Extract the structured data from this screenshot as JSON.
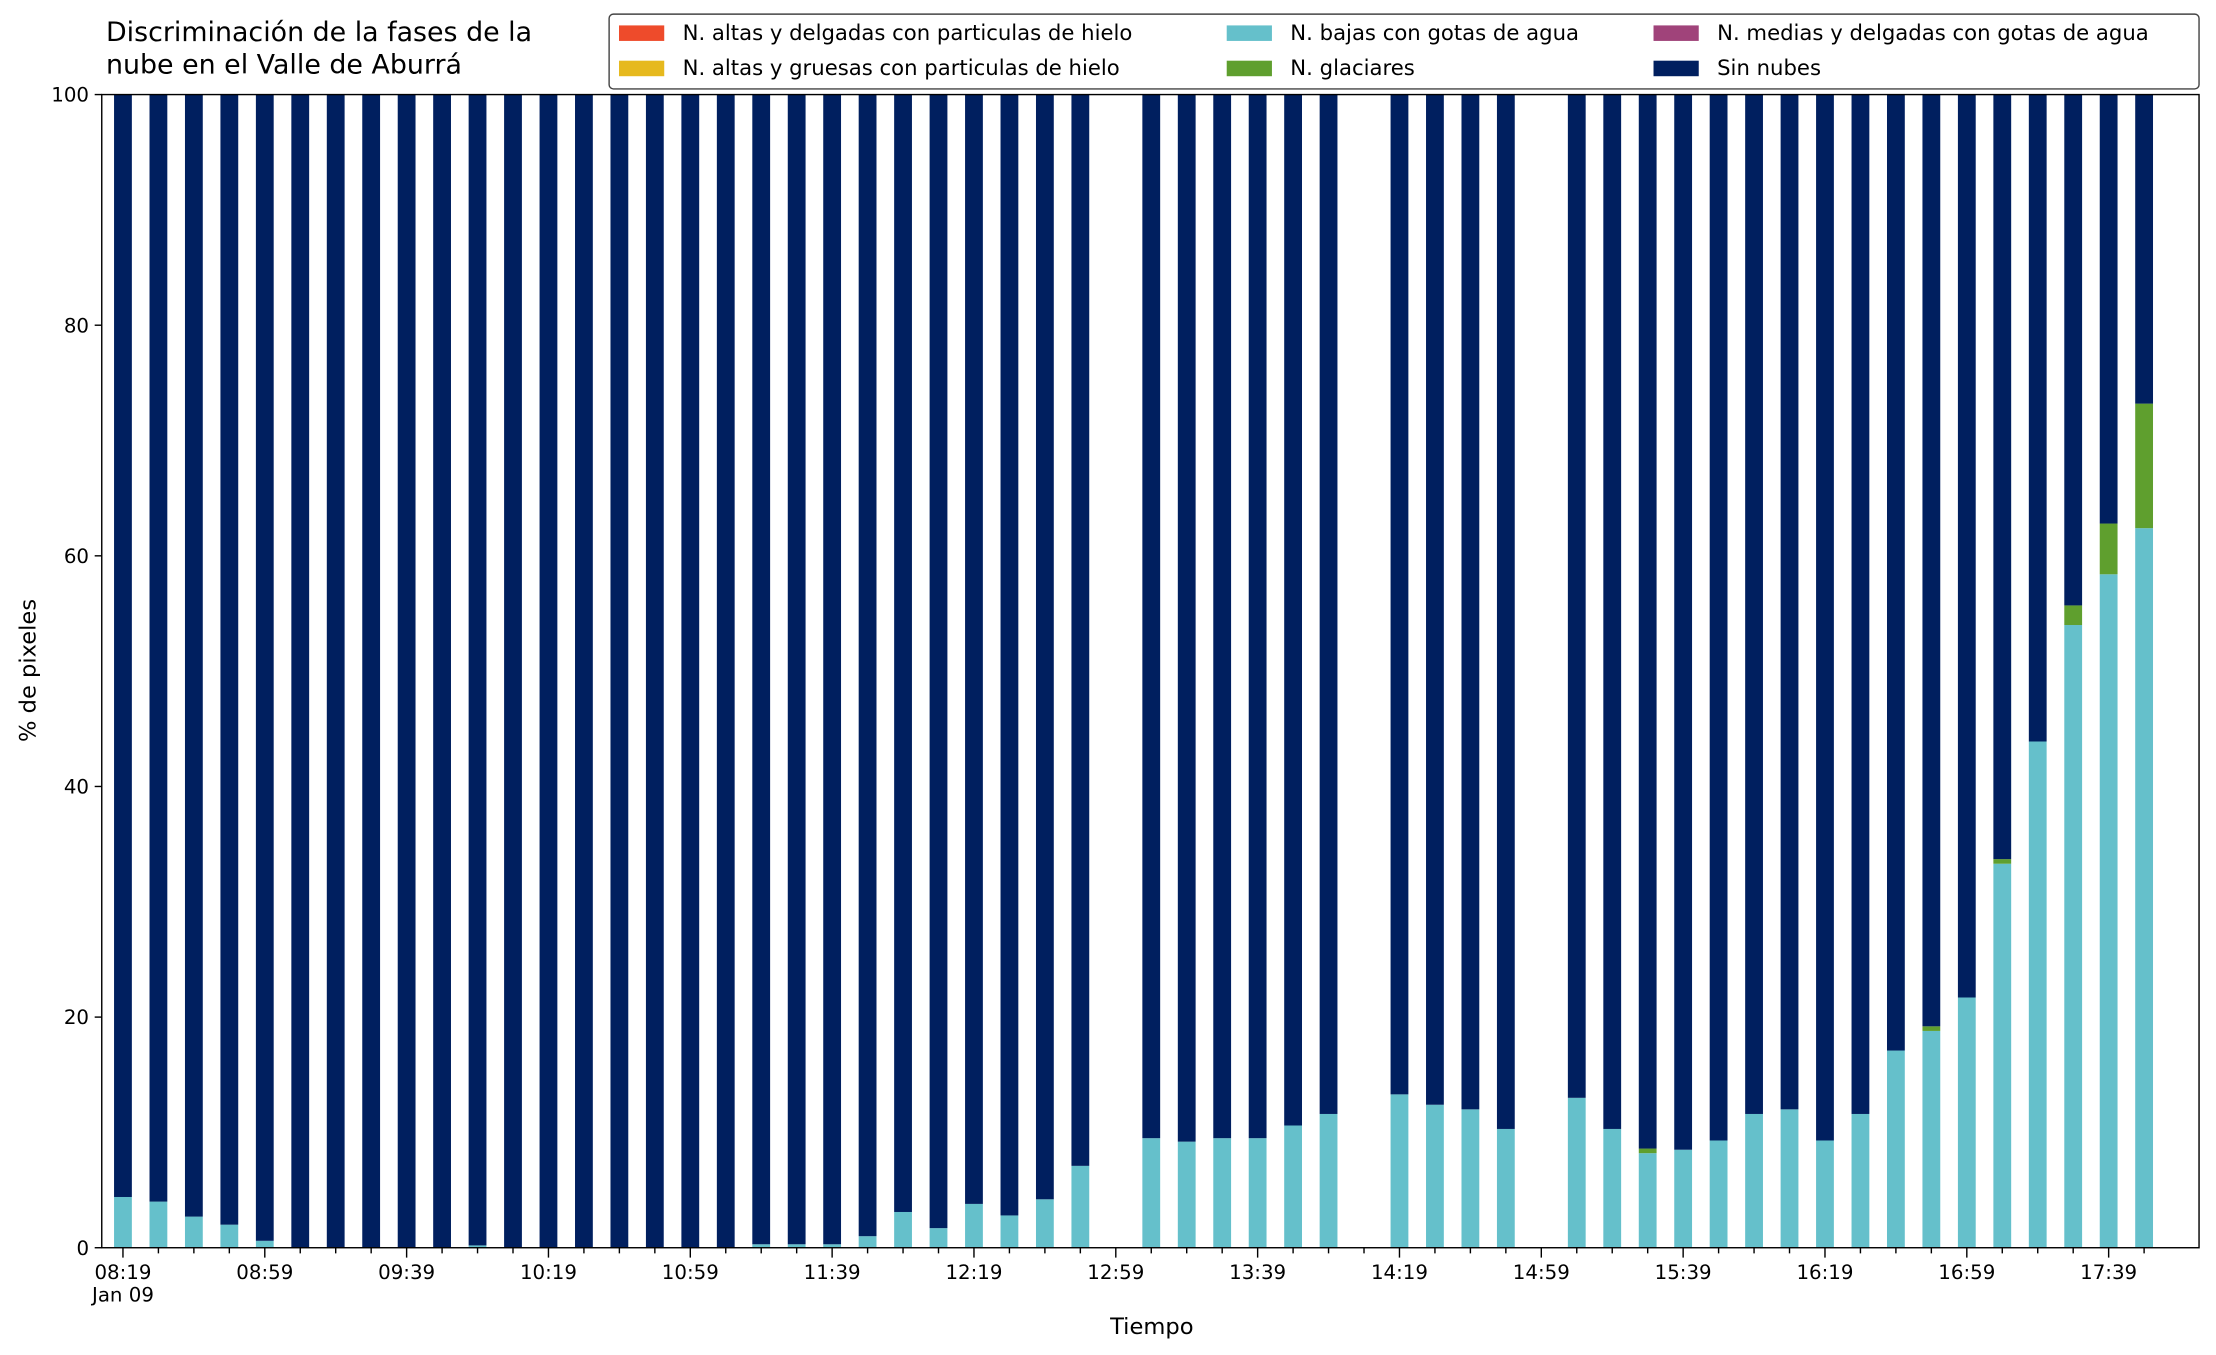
{
  "chart_data": {
    "type": "stacked_bar",
    "title": "Discriminación de la fases de la\nnube en el Valle de Aburrá",
    "xlabel": "Tiempo",
    "ylabel": "% de pixeles",
    "categories": [
      "08:19\nJan 09",
      null,
      null,
      null,
      "08:59",
      null,
      null,
      null,
      "09:39",
      null,
      null,
      null,
      "10:19",
      null,
      null,
      null,
      "10:59",
      null,
      null,
      null,
      "11:39",
      null,
      null,
      null,
      "12:19",
      null,
      null,
      null,
      "12:59",
      null,
      null,
      null,
      "13:39",
      null,
      null,
      null,
      "14:19",
      null,
      null,
      null,
      "14:59",
      null,
      null,
      null,
      "15:39",
      null,
      null,
      null,
      "16:19",
      null,
      null,
      null,
      "16:59",
      null,
      null,
      null,
      "17:39",
      null
    ],
    "ylim": [
      0,
      100
    ],
    "yticks": [
      0,
      20,
      40,
      60,
      80,
      100
    ],
    "legend": "upper right",
    "series": [
      {
        "name": "N. altas y delgadas con particulas de hielo",
        "color": "#ee4b2b",
        "values": [
          0,
          0,
          0,
          0,
          0,
          0,
          0,
          0,
          0,
          0,
          0,
          0,
          0,
          0,
          0,
          0,
          0,
          0,
          0,
          0,
          0,
          0,
          0,
          0,
          0,
          0,
          0,
          0,
          null,
          0,
          0,
          0,
          0,
          0,
          0,
          null,
          0,
          0,
          0,
          0,
          null,
          0,
          0,
          0,
          0,
          0,
          0,
          0,
          0,
          0,
          0,
          0,
          0,
          0,
          0,
          0,
          0,
          0
        ]
      },
      {
        "name": "N. altas y gruesas con particulas de hielo",
        "color": "#e6b91e",
        "values": [
          0,
          0,
          0,
          0,
          0,
          0,
          0,
          0,
          0,
          0,
          0,
          0,
          0,
          0,
          0,
          0,
          0,
          0,
          0,
          0,
          0,
          0,
          0,
          0,
          0,
          0,
          0,
          0,
          null,
          0,
          0,
          0,
          0,
          0,
          0,
          null,
          0,
          0,
          0,
          0,
          null,
          0,
          0,
          0,
          0,
          0,
          0,
          0,
          0,
          0,
          0,
          0,
          0,
          0,
          0,
          0,
          0,
          0
        ]
      },
      {
        "name": "N. bajas con gotas de agua",
        "color": "#65c0cb",
        "values": [
          4.4,
          4.0,
          2.7,
          2.0,
          0.6,
          0,
          0,
          0,
          0,
          0,
          0.2,
          0,
          0,
          0,
          0,
          0,
          0,
          0,
          0.3,
          0.3,
          0.3,
          1.0,
          3.1,
          1.7,
          3.8,
          2.8,
          4.2,
          7.1,
          null,
          9.5,
          9.2,
          9.5,
          9.5,
          10.6,
          11.6,
          null,
          13.3,
          12.4,
          12.0,
          10.3,
          null,
          13.0,
          10.3,
          8.2,
          8.5,
          9.3,
          11.6,
          12.0,
          9.3,
          11.6,
          17.1,
          18.8,
          21.7,
          33.3,
          43.9,
          54.0,
          58.4,
          62.4
        ]
      },
      {
        "name": "N. glaciares",
        "color": "#5f9f2e",
        "values": [
          0,
          0,
          0,
          0,
          0,
          0,
          0,
          0,
          0,
          0,
          0,
          0,
          0,
          0,
          0,
          0,
          0,
          0,
          0,
          0,
          0,
          0,
          0,
          0,
          0,
          0,
          0,
          0,
          null,
          0,
          0,
          0,
          0,
          0,
          0,
          null,
          0,
          0,
          0,
          0,
          null,
          0,
          0,
          0.4,
          0,
          0,
          0,
          0,
          0,
          0,
          0,
          0.4,
          0,
          0.4,
          0,
          1.7,
          4.4,
          10.8
        ]
      },
      {
        "name": "N. medias y delgadas con gotas de agua",
        "color": "#a0437a",
        "values": [
          0,
          0,
          0,
          0,
          0,
          0,
          0,
          0,
          0,
          0,
          0,
          0,
          0,
          0,
          0,
          0,
          0,
          0,
          0,
          0,
          0,
          0,
          0,
          0,
          0,
          0,
          0,
          0,
          null,
          0,
          0,
          0,
          0,
          0,
          0,
          null,
          0,
          0,
          0,
          0,
          null,
          0,
          0,
          0,
          0,
          0,
          0,
          0,
          0,
          0,
          0,
          0,
          0,
          0,
          0,
          0,
          0,
          0
        ]
      },
      {
        "name": "Sin nubes",
        "color": "#001f5f",
        "values": [
          95.6,
          96.0,
          97.3,
          98.0,
          99.4,
          100,
          100,
          100,
          100,
          100,
          99.8,
          100,
          100,
          100,
          100,
          100,
          100,
          100,
          99.7,
          99.7,
          99.7,
          99.0,
          96.9,
          98.3,
          96.2,
          97.2,
          95.8,
          92.9,
          null,
          90.5,
          90.8,
          90.5,
          90.5,
          89.4,
          88.4,
          null,
          86.7,
          87.6,
          88.0,
          89.7,
          null,
          87.0,
          89.7,
          91.4,
          91.5,
          90.7,
          88.4,
          88.0,
          90.7,
          88.4,
          82.9,
          80.8,
          78.3,
          66.3,
          56.1,
          44.3,
          37.2,
          26.8
        ]
      }
    ]
  }
}
